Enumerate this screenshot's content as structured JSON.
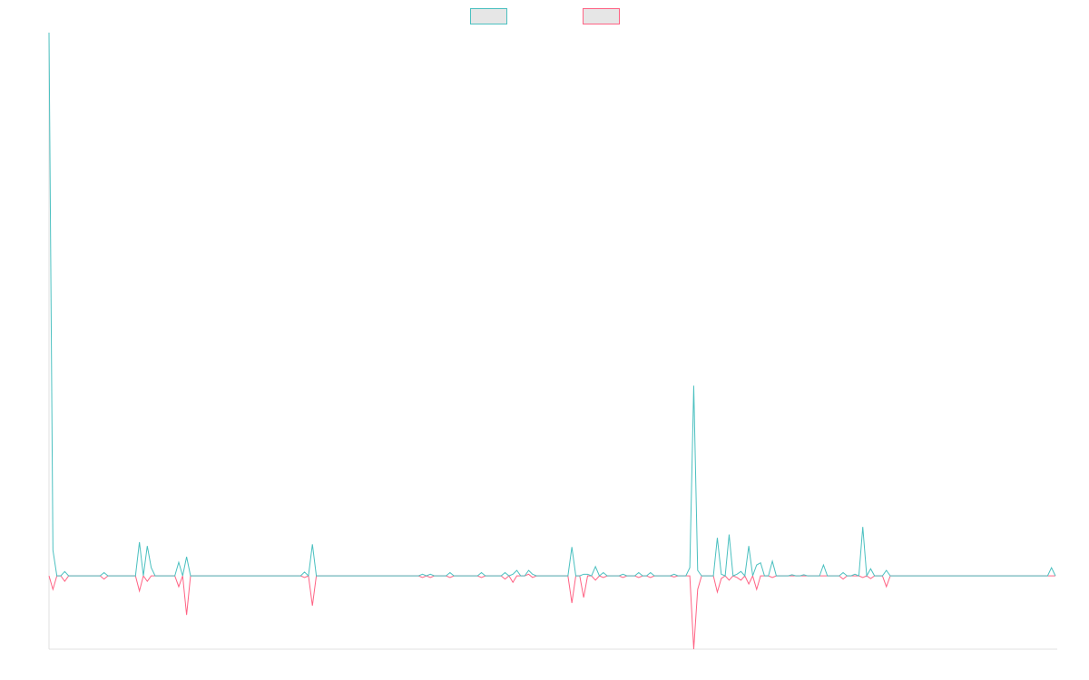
{
  "chart_data": {
    "type": "line",
    "legend": "top",
    "legend_fill": "#e6e6e6",
    "ylim": [
      -13.5,
      100
    ],
    "series": [
      {
        "color": "#4bc0c0",
        "values": [
          100,
          4.7,
          0,
          0,
          0.8,
          0,
          0,
          0,
          0,
          0,
          0,
          0,
          0,
          0,
          0.6,
          0,
          0,
          0,
          0,
          0,
          0,
          0,
          0,
          6.2,
          0,
          5.5,
          1.5,
          0,
          0,
          0,
          0,
          0,
          0,
          2.5,
          0,
          3.5,
          0,
          0,
          0,
          0,
          0,
          0,
          0,
          0,
          0,
          0,
          0,
          0,
          0,
          0,
          0,
          0,
          0,
          0,
          0,
          0,
          0,
          0,
          0,
          0,
          0,
          0,
          0,
          0,
          0,
          0.7,
          0,
          5.8,
          0,
          0,
          0,
          0,
          0,
          0,
          0,
          0,
          0,
          0,
          0,
          0,
          0,
          0,
          0,
          0,
          0,
          0,
          0,
          0,
          0,
          0,
          0,
          0,
          0,
          0,
          0,
          0.3,
          0,
          0.3,
          0,
          0,
          0,
          0,
          0.6,
          0,
          0,
          0,
          0,
          0,
          0,
          0,
          0.6,
          0,
          0,
          0,
          0,
          0,
          0.6,
          0,
          0.3,
          1,
          0,
          0,
          1,
          0.3,
          0,
          0,
          0,
          0,
          0,
          0,
          0,
          0,
          0,
          5.3,
          0,
          0,
          0.3,
          0.3,
          0,
          1.7,
          0,
          0.6,
          0,
          0,
          0,
          0,
          0.3,
          0,
          0,
          0,
          0.6,
          0,
          0,
          0.6,
          0,
          0,
          0,
          0,
          0,
          0.3,
          0,
          0,
          0,
          1.5,
          35,
          1,
          0,
          0,
          0,
          0,
          7,
          0.3,
          0,
          7.6,
          0,
          0.3,
          0.8,
          0,
          5.5,
          0,
          2,
          2.4,
          0,
          0,
          2.7,
          0,
          0,
          0,
          0,
          0.2,
          0,
          0,
          0.2,
          0,
          0,
          0,
          0,
          2,
          0,
          0,
          0,
          0,
          0.6,
          0,
          0,
          0.3,
          0,
          9,
          0,
          1.3,
          0,
          0,
          0,
          1,
          0,
          0,
          0,
          0,
          0,
          0,
          0,
          0,
          0,
          0,
          0,
          0,
          0,
          0,
          0,
          0,
          0,
          0,
          0,
          0,
          0,
          0,
          0,
          0,
          0,
          0,
          0,
          0,
          0,
          0,
          0,
          0,
          0,
          0,
          0,
          0,
          0,
          0,
          0,
          0,
          0,
          1.5,
          0
        ]
      },
      {
        "color": "#ff6384",
        "values": [
          0,
          -2.5,
          0,
          0,
          -1,
          0,
          0,
          0,
          0,
          0,
          0,
          0,
          0,
          0,
          -0.6,
          0,
          0,
          0,
          0,
          0,
          0,
          0,
          0,
          -2.8,
          0,
          -1,
          0,
          0,
          0,
          0,
          0,
          0,
          0,
          -2,
          0,
          -7.2,
          0,
          0,
          0,
          0,
          0,
          0,
          0,
          0,
          0,
          0,
          0,
          0,
          0,
          0,
          0,
          0,
          0,
          0,
          0,
          0,
          0,
          0,
          0,
          0,
          0,
          0,
          0,
          0,
          0,
          -0.3,
          0,
          -5.5,
          0,
          0,
          0,
          0,
          0,
          0,
          0,
          0,
          0,
          0,
          0,
          0,
          0,
          0,
          0,
          0,
          0,
          0,
          0,
          0,
          0,
          0,
          0,
          0,
          0,
          0,
          0,
          -0.3,
          0,
          -0.3,
          0,
          0,
          0,
          0,
          -0.3,
          0,
          0,
          0,
          0,
          0,
          0,
          0,
          -0.3,
          0,
          0,
          0,
          0,
          0,
          -0.6,
          0,
          -1.2,
          0,
          0,
          0,
          0.3,
          -0.3,
          0,
          0,
          0,
          0,
          0,
          0,
          0,
          0,
          0,
          -5,
          0,
          0,
          -4,
          0,
          0,
          -0.8,
          0,
          -0.3,
          0,
          0,
          0,
          0,
          -0.3,
          0,
          0,
          0,
          -0.3,
          0,
          0,
          -0.3,
          0,
          0,
          0,
          0,
          0,
          -0.2,
          0,
          0,
          0,
          0,
          -13.5,
          -2.5,
          0,
          0,
          0,
          0,
          -3,
          -0.5,
          0,
          -0.8,
          0,
          -0.3,
          -0.8,
          0,
          -1.5,
          0,
          -2.5,
          0,
          0,
          0,
          -0.3,
          0,
          0,
          0,
          0,
          0,
          0,
          0,
          0,
          0,
          0,
          0,
          0,
          0,
          0,
          0,
          0,
          0,
          -0.6,
          0,
          0,
          0,
          0,
          -0.3,
          0,
          -0.5,
          0,
          0,
          0,
          -2,
          0,
          0,
          0,
          0,
          0,
          0,
          0,
          0,
          0,
          0,
          0,
          0,
          0,
          0,
          0,
          0,
          0,
          0,
          0,
          0,
          0,
          0,
          0,
          0,
          0,
          0,
          0,
          0,
          0,
          0,
          0,
          0,
          0,
          0,
          0,
          0,
          0,
          0,
          0,
          0,
          0,
          0,
          0
        ]
      }
    ]
  }
}
